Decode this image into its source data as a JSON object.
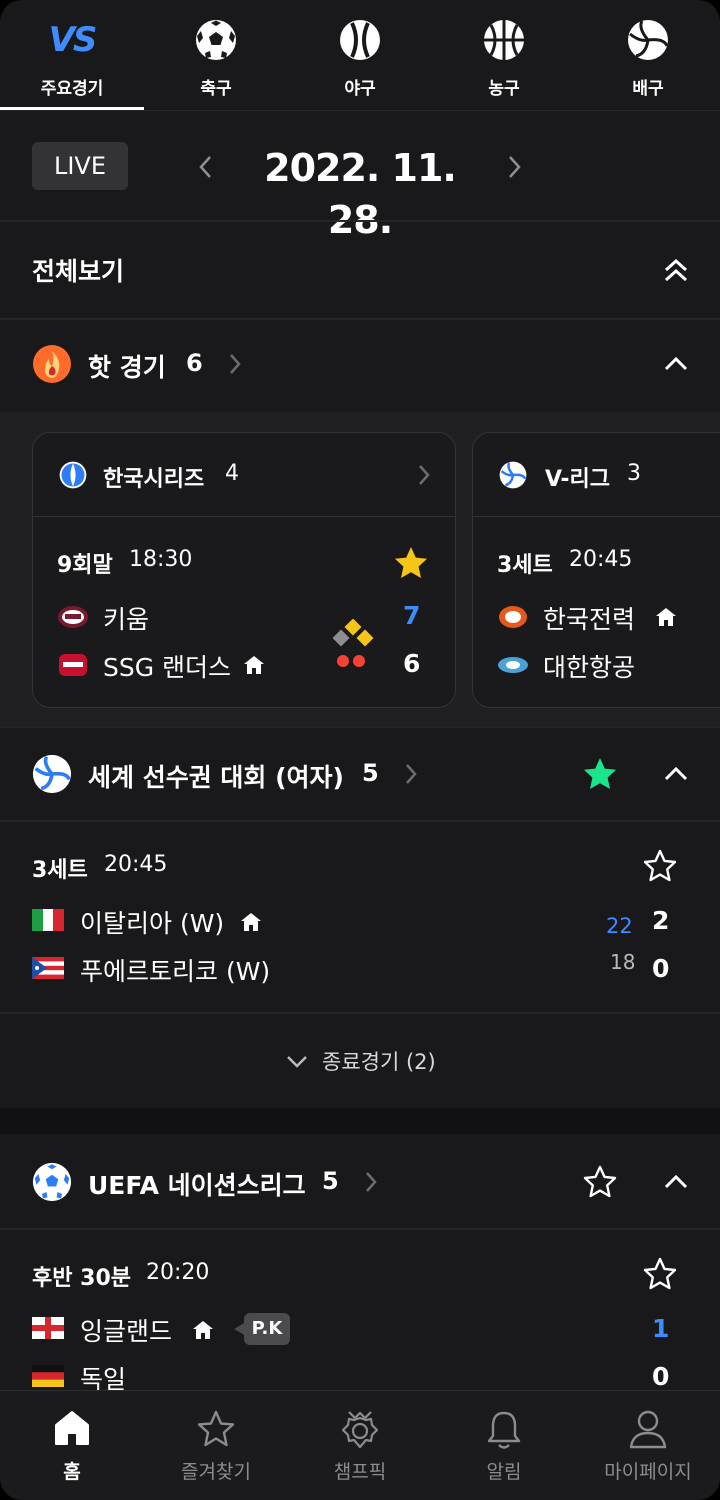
{
  "tabs": [
    {
      "label": "주요경기",
      "icon": "vs-icon",
      "vs_text": "VS"
    },
    {
      "label": "축구",
      "icon": "soccer-ball-icon"
    },
    {
      "label": "야구",
      "icon": "baseball-icon"
    },
    {
      "label": "농구",
      "icon": "basketball-icon"
    },
    {
      "label": "배구",
      "icon": "volleyball-icon"
    }
  ],
  "date_bar": {
    "live_label": "LIVE",
    "date": "2022. 11. 28."
  },
  "view_all": {
    "label": "전체보기"
  },
  "hot": {
    "title": "핫 경기",
    "count": "6"
  },
  "hot_cards": [
    {
      "league": "한국시리즈",
      "count": "4",
      "status": "9회말",
      "time": "18:30",
      "team1": "키움",
      "team2": "SSG 랜더스",
      "score1": "7",
      "score2": "6",
      "favorited": true
    },
    {
      "league": "V-리그",
      "count": "3",
      "status": "3세트",
      "time": "20:45",
      "team1": "한국전력",
      "team2": "대한항공"
    }
  ],
  "volley_section": {
    "title": "세계 선수권 대회 (여자)",
    "count": "5",
    "favorited": true,
    "match": {
      "status": "3세트",
      "time": "20:45",
      "team1": "이탈리아 (W)",
      "team2": "푸에르토리코 (W)",
      "set1": "22",
      "set2": "18",
      "score1": "2",
      "score2": "0"
    },
    "finished_label": "종료경기 (2)"
  },
  "soccer_section": {
    "title": "UEFA 네이션스리그",
    "count": "5",
    "match": {
      "status": "후반 30분",
      "time": "20:20",
      "team1": "잉글랜드",
      "team2": "독일",
      "badge": "P.K",
      "score1": "1",
      "score2": "0"
    }
  },
  "bottom_nav": [
    {
      "label": "홈",
      "icon": "home-icon"
    },
    {
      "label": "즐겨찾기",
      "icon": "star-icon"
    },
    {
      "label": "챔프픽",
      "icon": "champ-pick-icon"
    },
    {
      "label": "알림",
      "icon": "bell-icon"
    },
    {
      "label": "마이페이지",
      "icon": "user-icon"
    }
  ],
  "colors": {
    "background": "#19191b",
    "accent_blue": "#3d8bff",
    "star_yellow": "#f5c518",
    "star_green": "#1be58c",
    "hot_orange": "#ff6b2b"
  }
}
